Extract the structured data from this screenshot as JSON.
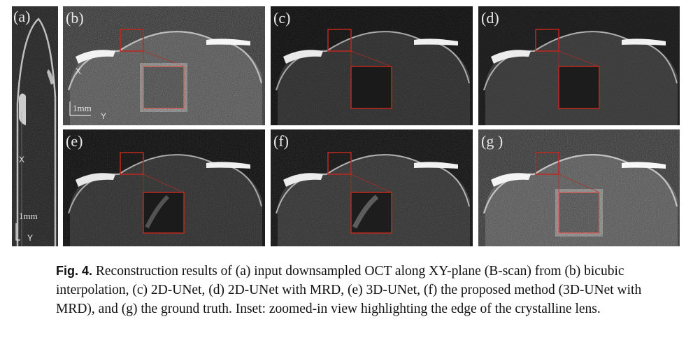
{
  "panels": {
    "a": {
      "label": "(a)",
      "axis_x": "X",
      "axis_y": "Y",
      "scale": "1mm"
    },
    "b": {
      "label": "(b)",
      "axis_x": "X",
      "axis_y": "Y",
      "scale": "1mm"
    },
    "c": {
      "label": "(c)"
    },
    "d": {
      "label": "(d)"
    },
    "e": {
      "label": "(e)"
    },
    "f": {
      "label": "(f)"
    },
    "g": {
      "label": "(g )"
    }
  },
  "caption": {
    "tag": "Fig. 4.",
    "text": "Reconstruction results of (a) input downsampled OCT along XY-plane (B-scan) from (b) bicubic interpolation, (c) 2D-UNet, (d) 2D-UNet with MRD, (e) 3D-UNet, (f) the proposed method (3D-UNet with MRD), and (g) the ground truth. Inset: zoomed-in view highlighting the edge of the crystalline lens."
  },
  "colors": {
    "inset_box": "#c0281f",
    "background": "#050505",
    "caption_text": "#111111"
  }
}
